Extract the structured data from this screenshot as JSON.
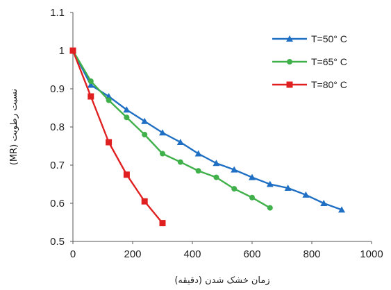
{
  "chart_data": {
    "type": "line",
    "xlabel": "زمان خشک شدن (دقیقه)",
    "ylabel": "نسبت رطوبت (MR)",
    "xlim": [
      0,
      1000
    ],
    "ylim": [
      0.5,
      1.1
    ],
    "x_ticks": [
      "0",
      "200",
      "400",
      "600",
      "800",
      "1000"
    ],
    "y_ticks": [
      "0.5",
      "0.6",
      "0.7",
      "0.8",
      "0.9",
      "1",
      "1.1"
    ],
    "grid": false,
    "legend_position": "top-right",
    "series": [
      {
        "name": "T=50° C",
        "color": "#1f6fc4",
        "marker": "triangle",
        "points": [
          [
            0,
            1.0
          ],
          [
            60,
            0.91
          ],
          [
            120,
            0.88
          ],
          [
            180,
            0.845
          ],
          [
            240,
            0.815
          ],
          [
            300,
            0.785
          ],
          [
            360,
            0.76
          ],
          [
            420,
            0.73
          ],
          [
            480,
            0.705
          ],
          [
            540,
            0.688
          ],
          [
            600,
            0.668
          ],
          [
            660,
            0.65
          ],
          [
            720,
            0.64
          ],
          [
            780,
            0.622
          ],
          [
            840,
            0.6
          ],
          [
            900,
            0.583
          ]
        ]
      },
      {
        "name": "T=65° C",
        "color": "#3fb04a",
        "marker": "circle",
        "points": [
          [
            0,
            1.0
          ],
          [
            60,
            0.92
          ],
          [
            120,
            0.87
          ],
          [
            180,
            0.825
          ],
          [
            240,
            0.78
          ],
          [
            300,
            0.73
          ],
          [
            360,
            0.708
          ],
          [
            420,
            0.685
          ],
          [
            480,
            0.668
          ],
          [
            540,
            0.638
          ],
          [
            600,
            0.615
          ],
          [
            660,
            0.588
          ]
        ]
      },
      {
        "name": "T=80° C",
        "color": "#e02020",
        "marker": "square",
        "points": [
          [
            0,
            1.0
          ],
          [
            60,
            0.88
          ],
          [
            120,
            0.76
          ],
          [
            180,
            0.675
          ],
          [
            240,
            0.605
          ],
          [
            300,
            0.548
          ]
        ]
      }
    ]
  }
}
